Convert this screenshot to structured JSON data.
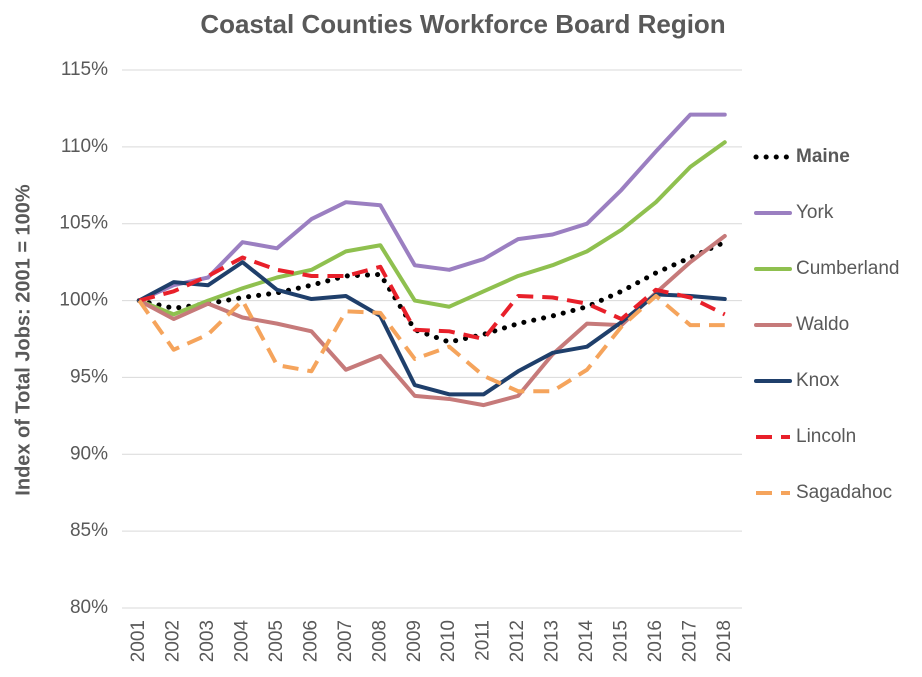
{
  "chart_data": {
    "type": "line",
    "title": "Coastal Counties Workforce Board Region",
    "y_label": "Index of Total Jobs: 2001 = 100%",
    "categories": [
      "2001",
      "2002",
      "2003",
      "2004",
      "2005",
      "2006",
      "2007",
      "2008",
      "2009",
      "2010",
      "2011",
      "2012",
      "2013",
      "2014",
      "2015",
      "2016",
      "2017",
      "2018"
    ],
    "ylim": [
      80,
      115
    ],
    "yticks": [
      {
        "value": 80,
        "label": "80%"
      },
      {
        "value": 85,
        "label": "85%"
      },
      {
        "value": 90,
        "label": "90%"
      },
      {
        "value": 95,
        "label": "95%"
      },
      {
        "value": 100,
        "label": "100%"
      },
      {
        "value": 105,
        "label": "105%"
      },
      {
        "value": 110,
        "label": "110%"
      },
      {
        "value": 115,
        "label": "115%"
      }
    ],
    "grid": true,
    "legend": "right",
    "series": [
      {
        "name": "Maine",
        "color": "#000000",
        "dash": "dotted",
        "bold": true,
        "values": [
          100,
          99.5,
          99.8,
          100.2,
          100.5,
          101,
          101.6,
          101.7,
          98.1,
          97.3,
          97.8,
          98.5,
          99,
          99.6,
          100.6,
          101.8,
          102.8,
          103.8
        ]
      },
      {
        "name": "York",
        "color": "#9b7fc1",
        "dash": "solid",
        "values": [
          100,
          101,
          101.5,
          103.8,
          103.4,
          105.3,
          106.4,
          106.2,
          102.3,
          102,
          102.7,
          104,
          104.3,
          105,
          107.2,
          109.7,
          112.1,
          112.1
        ]
      },
      {
        "name": "Cumberland",
        "color": "#8fc04f",
        "dash": "solid",
        "values": [
          100,
          99.1,
          100,
          100.8,
          101.5,
          102,
          103.2,
          103.6,
          100,
          99.6,
          100.6,
          101.6,
          102.3,
          103.2,
          104.6,
          106.4,
          108.7,
          110.3
        ]
      },
      {
        "name": "Waldo",
        "color": "#c67a7a",
        "dash": "solid",
        "values": [
          100,
          98.8,
          99.8,
          98.9,
          98.5,
          98,
          95.5,
          96.4,
          93.8,
          93.6,
          93.2,
          93.8,
          96.5,
          98.5,
          98.4,
          100.5,
          102.5,
          104.2
        ]
      },
      {
        "name": "Knox",
        "color": "#1f3f6b",
        "dash": "solid",
        "values": [
          100,
          101.2,
          101,
          102.5,
          100.7,
          100.1,
          100.3,
          99,
          94.5,
          93.9,
          93.9,
          95.4,
          96.6,
          97,
          98.6,
          100.4,
          100.3,
          100.1
        ]
      },
      {
        "name": "Lincoln",
        "color": "#e8202a",
        "dash": "dashed",
        "values": [
          100,
          100.6,
          101.6,
          102.8,
          102,
          101.6,
          101.6,
          102.2,
          98.1,
          98,
          97.5,
          100.3,
          100.2,
          99.8,
          98.8,
          100.7,
          100.2,
          99.1
        ]
      },
      {
        "name": "Sagadahoc",
        "color": "#f5a45c",
        "dash": "dashed",
        "values": [
          100,
          96.8,
          97.8,
          100,
          95.8,
          95.4,
          99.3,
          99.2,
          96.2,
          97,
          95.1,
          94.1,
          94.1,
          95.5,
          98.3,
          100.3,
          98.4,
          98.4
        ]
      }
    ]
  }
}
